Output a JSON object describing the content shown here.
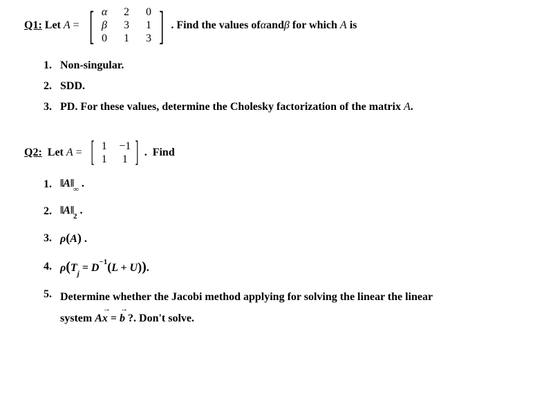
{
  "q1": {
    "label": "Q1:",
    "let": " Let ",
    "Avar": "A",
    "eq": " = ",
    "matrix": {
      "r1c1": "α",
      "r1c2": "2",
      "r1c3": "0",
      "r2c1": "β",
      "r2c2": "3",
      "r2c3": "1",
      "r3c1": "0",
      "r3c2": "1",
      "r3c3": "3"
    },
    "after": ". Find the values of ",
    "alpha": "α",
    "and": " and ",
    "beta": "β",
    "forwhich": " for which ",
    "Avar2": "A",
    "is": " is",
    "items": {
      "n1": "1.",
      "t1": "Non-singular.",
      "n2": "2.",
      "t2": "SDD.",
      "n3": "3.",
      "t3a": "PD. For these values, determine the Cholesky factorization of the matrix ",
      "t3b": "A",
      "t3c": "."
    }
  },
  "q2": {
    "label": "Q2:",
    "let": "  Let ",
    "Avar": "A",
    "eq": " = ",
    "matrix": {
      "r1c1": "1",
      "r1c2": "−1",
      "r2c1": "1",
      "r2c2": "1"
    },
    "after": ".  Find",
    "items": {
      "n1": "1.",
      "norm_inf_A": "A",
      "norm_inf_sub": "∞",
      "dot": ".",
      "n2": "2.",
      "norm_2_A": "A",
      "norm_2_sub": "2",
      "n3": "3.",
      "rho": "ρ",
      "rhoA": "A",
      "n4": "4.",
      "Tj": "T",
      "Tj_sub": "j",
      "eq4": " = D",
      "Dinv": "−1",
      "LU": "L + U",
      "n5": "5.",
      "t5a": "Determine whether the Jacobi method applying for solving the linear the linear",
      "t5b_pre": "system ",
      "Ax_A": "A",
      "Ax_x": "x",
      "Ax_eq": " = ",
      "Ax_b": "b",
      "t5b_post": " ?. Don't solve."
    }
  }
}
